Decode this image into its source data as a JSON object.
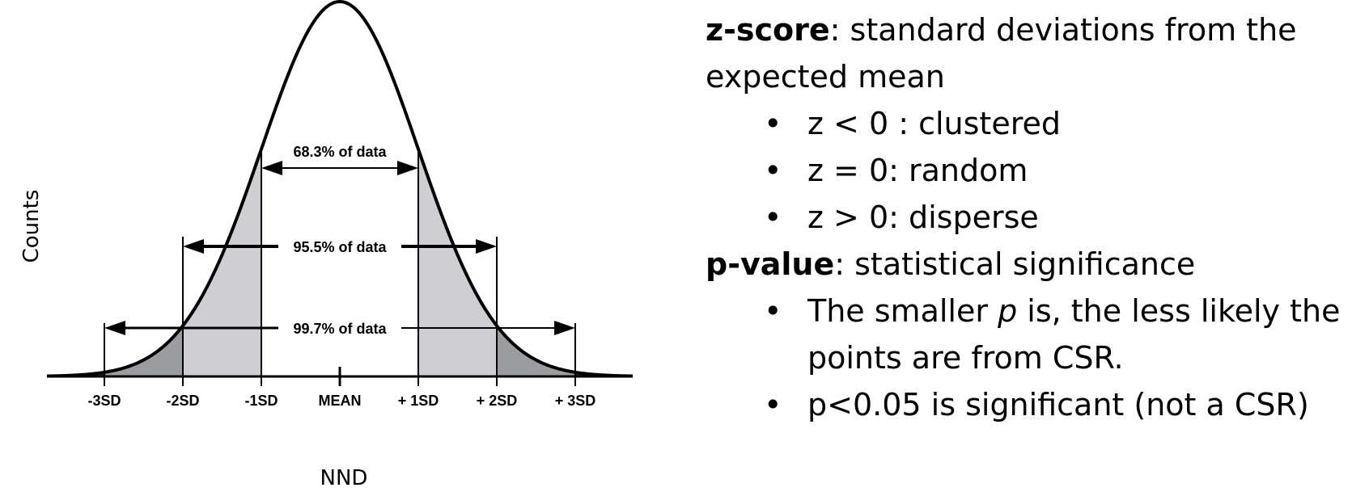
{
  "figure": {
    "y_axis_label": "Counts",
    "x_axis_label": "NND",
    "ticks": [
      "-3SD",
      "-2SD",
      "-1SD",
      "MEAN",
      "+ 1SD",
      "+ 2SD",
      "+ 3SD"
    ],
    "bands": [
      {
        "label": "68.3% of data",
        "from_sd": -1,
        "to_sd": 1
      },
      {
        "label": "95.5% of data",
        "from_sd": -2,
        "to_sd": 2
      },
      {
        "label": "99.7% of data",
        "from_sd": -3,
        "to_sd": 3
      }
    ],
    "colors": {
      "inner_shade": "#cfcfd3",
      "middle_shade": "#9b9ca0",
      "outer_shade": "#2a2b2d",
      "line": "#000000"
    }
  },
  "legend": {
    "zscore": {
      "term": "z-score",
      "definition": ": standard deviations from the expected mean",
      "bullets": [
        "z < 0 : clustered",
        "z = 0: random",
        "z > 0: disperse"
      ]
    },
    "pvalue": {
      "term": "p-value",
      "definition": ": statistical significance",
      "bullet1_pre": "The smaller ",
      "bullet1_p": "p",
      "bullet1_post": " is, the less likely the points are from CSR.",
      "bullet2": "p<0.05 is significant (not a CSR)"
    }
  }
}
